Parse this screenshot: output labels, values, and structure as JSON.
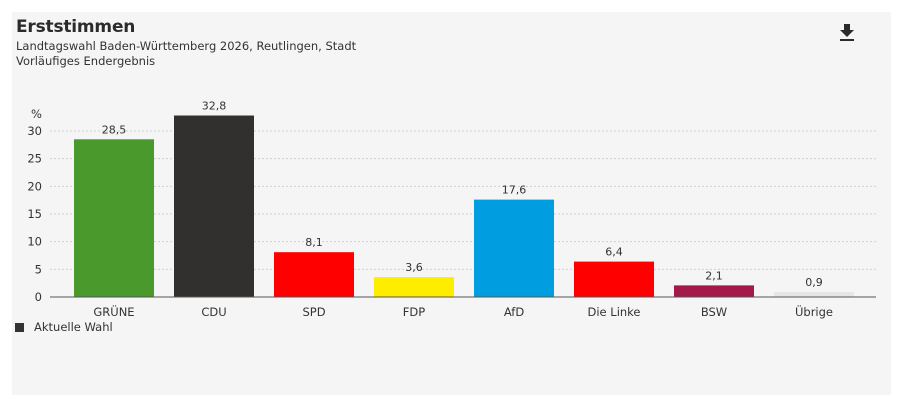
{
  "header": {
    "title": "Erststimmen",
    "subtitle_line1": "Landtagswahl Baden-Württemberg 2026, Reutlingen, Stadt",
    "subtitle_line2": "Vorläufiges Endergebnis",
    "download_icon": "download-icon"
  },
  "legend": {
    "items": [
      {
        "label": "Aktuelle Wahl",
        "color": "#333333"
      }
    ]
  },
  "chart_data": {
    "type": "bar",
    "title": "Erststimmen",
    "subtitle": "Landtagswahl Baden-Württemberg 2026, Reutlingen, Stadt — Vorläufiges Endergebnis",
    "xlabel": "",
    "ylabel": "%",
    "ylim": [
      0,
      30
    ],
    "yticks": [
      0,
      5,
      10,
      15,
      20,
      25,
      30
    ],
    "grid": true,
    "legend_position": "bottom-left",
    "categories": [
      "GRÜNE",
      "CDU",
      "SPD",
      "FDP",
      "AfD",
      "Die Linke",
      "BSW",
      "Übrige"
    ],
    "series": [
      {
        "name": "Aktuelle Wahl",
        "values": [
          28.5,
          32.8,
          8.1,
          3.6,
          17.6,
          6.4,
          2.1,
          0.9
        ],
        "labels": [
          "28,5",
          "32,8",
          "8,1",
          "3,6",
          "17,6",
          "6,4",
          "2,1",
          "0,9"
        ],
        "colors": [
          "#4a992c",
          "#32302e",
          "#fe0000",
          "#ffed00",
          "#009ee0",
          "#ff0000",
          "#a5184a",
          "#e6e6e6"
        ]
      }
    ]
  }
}
